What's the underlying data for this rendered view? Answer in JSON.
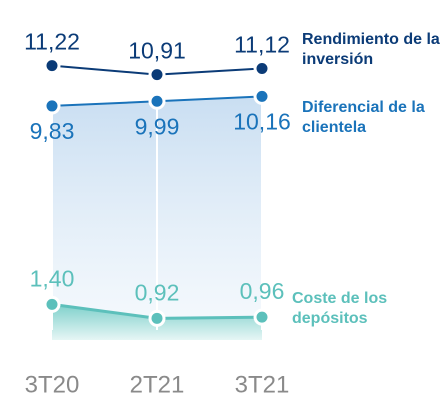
{
  "chart_data": {
    "type": "line",
    "categories": [
      "3T20",
      "2T21",
      "3T21"
    ],
    "series": [
      {
        "name": "Rendimiento de la inversión",
        "color": "#0b3b77",
        "values": [
          11.22,
          10.91,
          11.12
        ],
        "value_labels": [
          "11,22",
          "10,91",
          "11,12"
        ]
      },
      {
        "name": "Diferencial de la clientela",
        "color": "#1a73ba",
        "values": [
          9.83,
          9.99,
          10.16
        ],
        "value_labels": [
          "9,83",
          "9,99",
          "10,16"
        ]
      },
      {
        "name": "Coste de los depósitos",
        "color": "#5cc0bb",
        "values": [
          1.4,
          0.92,
          0.96
        ],
        "value_labels": [
          "1,40",
          "0,92",
          "0,96"
        ]
      }
    ]
  }
}
